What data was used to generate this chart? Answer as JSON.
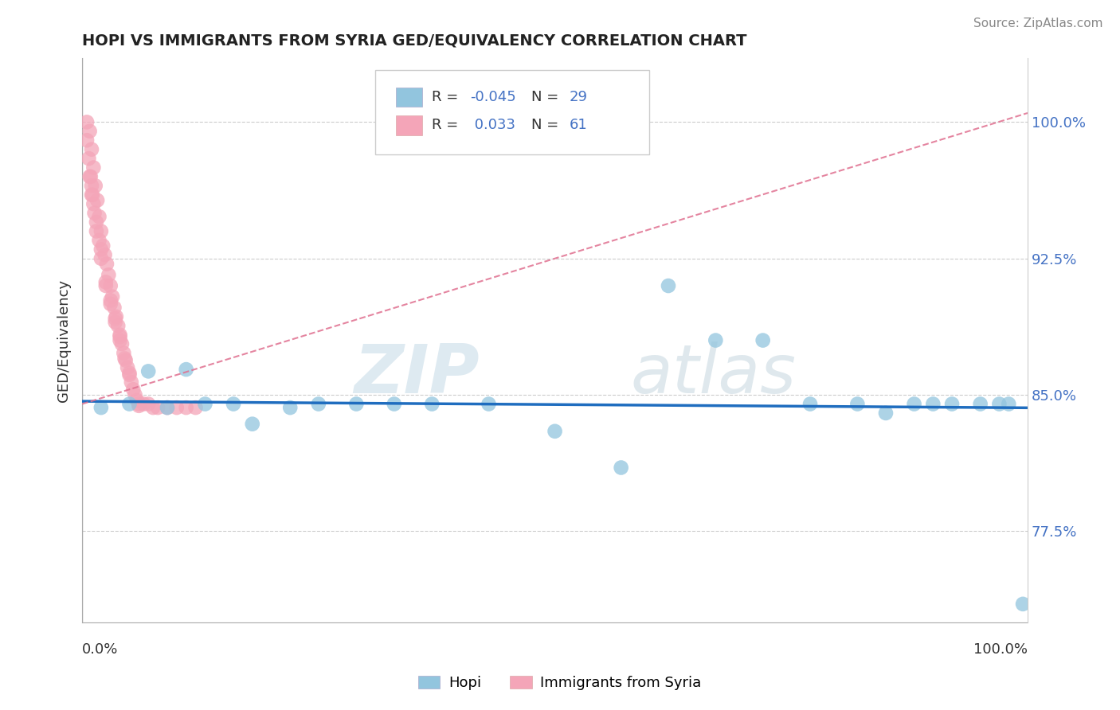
{
  "title": "HOPI VS IMMIGRANTS FROM SYRIA GED/EQUIVALENCY CORRELATION CHART",
  "source": "Source: ZipAtlas.com",
  "ylabel": "GED/Equivalency",
  "xlim": [
    0.0,
    1.0
  ],
  "ylim": [
    0.725,
    1.035
  ],
  "yticks": [
    0.775,
    0.85,
    0.925,
    1.0
  ],
  "ytick_labels": [
    "77.5%",
    "85.0%",
    "92.5%",
    "100.0%"
  ],
  "hopi_color": "#92c5de",
  "syria_color": "#f4a5b8",
  "hopi_R": -0.045,
  "hopi_N": 29,
  "syria_R": 0.033,
  "syria_N": 61,
  "legend_label_hopi": "Hopi",
  "legend_label_syria": "Immigrants from Syria",
  "watermark_zip": "ZIP",
  "watermark_atlas": "atlas",
  "hopi_line_color": "#1f6dbf",
  "syria_line_color": "#e07090",
  "hopi_x": [
    0.02,
    0.05,
    0.07,
    0.09,
    0.11,
    0.13,
    0.16,
    0.18,
    0.22,
    0.25,
    0.29,
    0.33,
    0.37,
    0.43,
    0.5,
    0.57,
    0.62,
    0.67,
    0.72,
    0.77,
    0.82,
    0.85,
    0.88,
    0.9,
    0.92,
    0.95,
    0.97,
    0.98,
    0.995
  ],
  "hopi_y": [
    0.843,
    0.845,
    0.863,
    0.843,
    0.864,
    0.845,
    0.845,
    0.834,
    0.843,
    0.845,
    0.845,
    0.845,
    0.845,
    0.845,
    0.83,
    0.81,
    0.91,
    0.88,
    0.88,
    0.845,
    0.845,
    0.84,
    0.845,
    0.845,
    0.845,
    0.845,
    0.845,
    0.845,
    0.735
  ],
  "syria_x": [
    0.005,
    0.008,
    0.01,
    0.012,
    0.014,
    0.016,
    0.018,
    0.02,
    0.022,
    0.024,
    0.026,
    0.028,
    0.03,
    0.032,
    0.034,
    0.036,
    0.038,
    0.04,
    0.042,
    0.044,
    0.046,
    0.048,
    0.05,
    0.052,
    0.054,
    0.056,
    0.058,
    0.06,
    0.065,
    0.07,
    0.075,
    0.08,
    0.09,
    0.1,
    0.11,
    0.12,
    0.01,
    0.015,
    0.02,
    0.025,
    0.03,
    0.035,
    0.04,
    0.045,
    0.005,
    0.008,
    0.01,
    0.012,
    0.015,
    0.018,
    0.02,
    0.025,
    0.03,
    0.035,
    0.04,
    0.05,
    0.06,
    0.007,
    0.009,
    0.011,
    0.013
  ],
  "syria_y": [
    1.0,
    0.995,
    0.985,
    0.975,
    0.965,
    0.957,
    0.948,
    0.94,
    0.932,
    0.927,
    0.922,
    0.916,
    0.91,
    0.904,
    0.898,
    0.893,
    0.888,
    0.883,
    0.878,
    0.873,
    0.869,
    0.865,
    0.861,
    0.857,
    0.853,
    0.85,
    0.847,
    0.844,
    0.845,
    0.845,
    0.843,
    0.843,
    0.843,
    0.843,
    0.843,
    0.843,
    0.96,
    0.94,
    0.93,
    0.91,
    0.9,
    0.89,
    0.88,
    0.87,
    0.99,
    0.97,
    0.965,
    0.955,
    0.945,
    0.935,
    0.925,
    0.912,
    0.902,
    0.892,
    0.882,
    0.862,
    0.845,
    0.98,
    0.97,
    0.96,
    0.95
  ]
}
